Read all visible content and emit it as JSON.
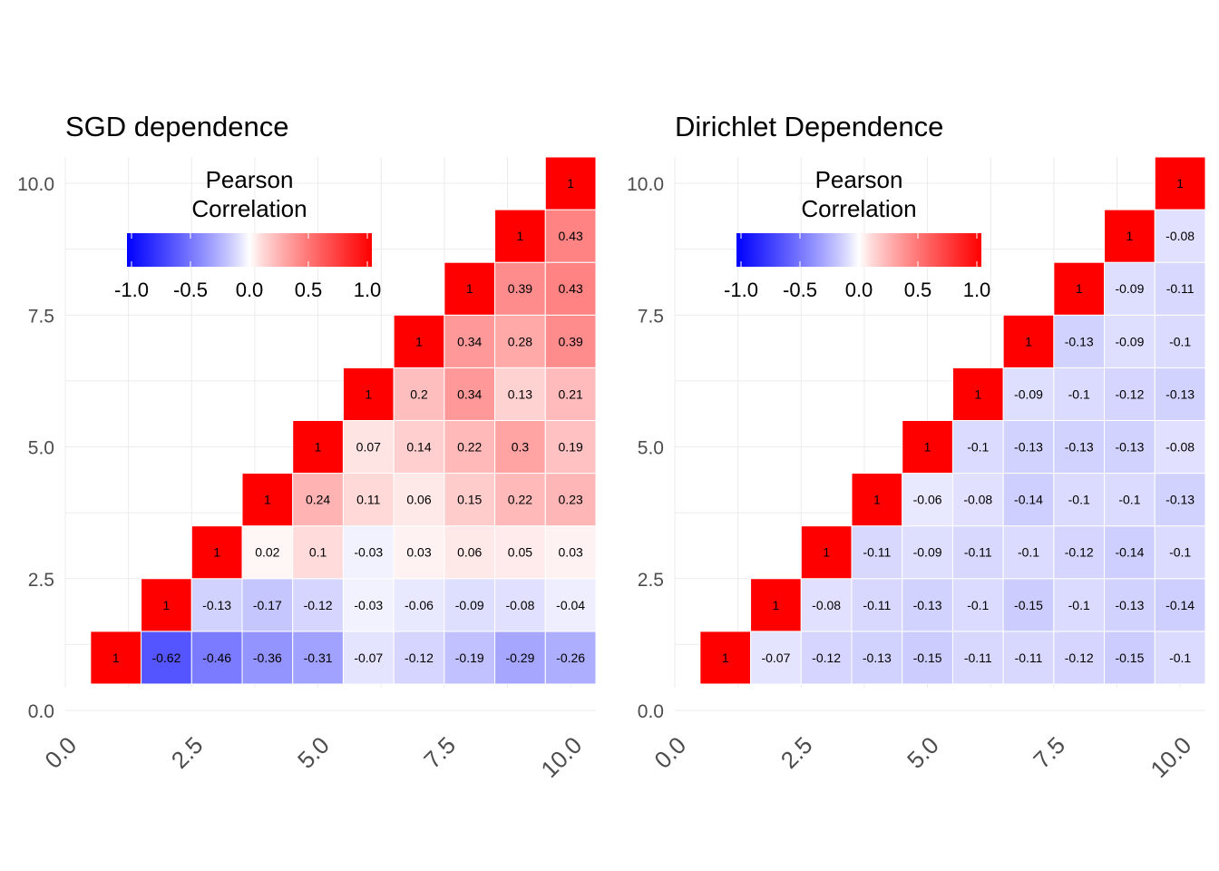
{
  "chart_data": [
    {
      "type": "heatmap",
      "title": "SGD dependence",
      "xlim": [
        0,
        10.5
      ],
      "ylim": [
        0,
        10.5
      ],
      "x_ticks": [
        0.0,
        2.5,
        5.0,
        7.5,
        10.0
      ],
      "x_tick_labels": [
        "0.0",
        "2.5",
        "5.0",
        "7.5",
        "10.0"
      ],
      "y_ticks": [
        0.0,
        2.5,
        5.0,
        7.5,
        10.0
      ],
      "y_tick_labels": [
        "0.0",
        "2.5",
        "5.0",
        "7.5",
        "10.0"
      ],
      "grid": true,
      "color_scale": {
        "low": "#0000ff",
        "mid": "#ffffff",
        "high": "#ff0000",
        "limits": [
          -1,
          1
        ],
        "diagonal_color": "#ff0000"
      },
      "legend": {
        "title": "Pearson Correlation",
        "title_lines": [
          "Pearson",
          "Correlation"
        ],
        "placement": "top-left inside",
        "ticks": [
          -1.0,
          -0.5,
          0.0,
          0.5,
          1.0
        ],
        "tick_labels": [
          "-1.0",
          "-0.5",
          "0.0",
          "0.5",
          "1.0"
        ]
      },
      "matrix_note": "rows[i] = y position i+1 (bottom to top), values start at x = i+1 (diagonal) and continue to x = 10",
      "rows": [
        [
          1,
          -0.62,
          -0.46,
          -0.36,
          -0.31,
          -0.07,
          -0.12,
          -0.19,
          -0.29,
          -0.26
        ],
        [
          1,
          -0.13,
          -0.17,
          -0.12,
          -0.03,
          -0.06,
          -0.09,
          -0.08,
          -0.04
        ],
        [
          1,
          0.02,
          0.1,
          -0.03,
          0.03,
          0.06,
          0.05,
          0.03
        ],
        [
          1,
          0.24,
          0.11,
          0.06,
          0.15,
          0.22,
          0.23
        ],
        [
          1,
          0.07,
          0.14,
          0.22,
          0.3,
          0.19
        ],
        [
          1,
          0.2,
          0.34,
          0.13,
          0.21
        ],
        [
          1,
          0.34,
          0.28,
          0.39
        ],
        [
          1,
          0.39,
          0.43
        ],
        [
          1,
          0.43
        ],
        [
          1
        ]
      ]
    },
    {
      "type": "heatmap",
      "title": "Dirichlet Dependence",
      "xlim": [
        0,
        10.5
      ],
      "ylim": [
        0,
        10.5
      ],
      "x_ticks": [
        0.0,
        2.5,
        5.0,
        7.5,
        10.0
      ],
      "x_tick_labels": [
        "0.0",
        "2.5",
        "5.0",
        "7.5",
        "10.0"
      ],
      "y_ticks": [
        0.0,
        2.5,
        5.0,
        7.5,
        10.0
      ],
      "y_tick_labels": [
        "0.0",
        "2.5",
        "5.0",
        "7.5",
        "10.0"
      ],
      "grid": true,
      "color_scale": {
        "low": "#0000ff",
        "mid": "#ffffff",
        "high": "#ff0000",
        "limits": [
          -1,
          1
        ],
        "diagonal_color": "#ff0000"
      },
      "legend": {
        "title": "Pearson Correlation",
        "title_lines": [
          "Pearson",
          "Correlation"
        ],
        "placement": "top-left inside",
        "ticks": [
          -1.0,
          -0.5,
          0.0,
          0.5,
          1.0
        ],
        "tick_labels": [
          "-1.0",
          "-0.5",
          "0.0",
          "0.5",
          "1.0"
        ]
      },
      "matrix_note": "rows[i] = y position i+1 (bottom to top), values start at x = i+1 (diagonal) and continue to x = 10",
      "rows": [
        [
          1,
          -0.07,
          -0.12,
          -0.13,
          -0.15,
          -0.11,
          -0.11,
          -0.12,
          -0.15,
          -0.1
        ],
        [
          1,
          -0.08,
          -0.11,
          -0.13,
          -0.1,
          -0.15,
          -0.1,
          -0.13,
          -0.14
        ],
        [
          1,
          -0.11,
          -0.09,
          -0.11,
          -0.1,
          -0.12,
          -0.14,
          -0.1
        ],
        [
          1,
          -0.06,
          -0.08,
          -0.14,
          -0.1,
          -0.1,
          -0.13
        ],
        [
          1,
          -0.1,
          -0.13,
          -0.13,
          -0.13,
          -0.08
        ],
        [
          1,
          -0.09,
          -0.1,
          -0.12,
          -0.13
        ],
        [
          1,
          -0.13,
          -0.09,
          -0.1
        ],
        [
          1,
          -0.09,
          -0.11
        ],
        [
          1,
          -0.08
        ],
        [
          1
        ]
      ]
    }
  ]
}
